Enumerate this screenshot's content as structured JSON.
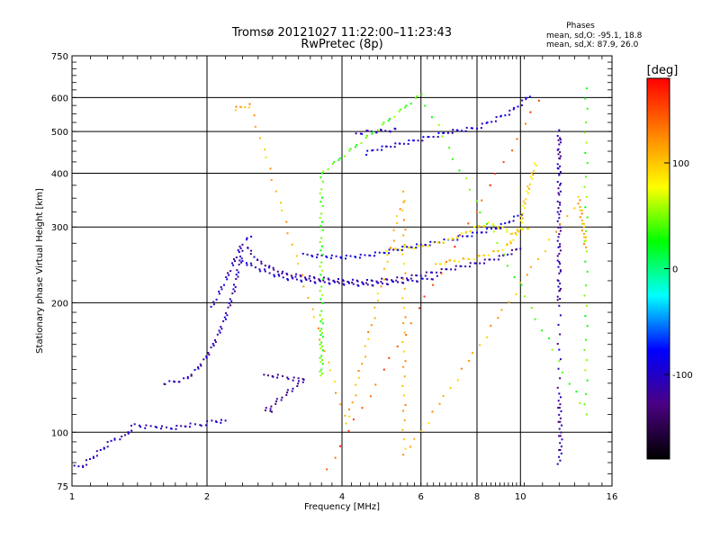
{
  "chart_data": {
    "type": "scatter",
    "title": "Tromsø 20121027 11:22:00–11:23:43",
    "subtitle": "RwPretec (8p)",
    "xlabel": "Frequency [MHz]",
    "ylabel": "Stationary phase Virtual Height [km]",
    "x_scale": "log",
    "y_scale": "log",
    "xlim": [
      1,
      16
    ],
    "ylim": [
      75,
      750
    ],
    "x_ticks": [
      1,
      2,
      4,
      6,
      8,
      10,
      16
    ],
    "x_tick_labels": [
      "1",
      "2",
      "4",
      "6",
      "8",
      "10",
      "16"
    ],
    "y_ticks": [
      75,
      100,
      200,
      300,
      400,
      500,
      600,
      750
    ],
    "y_tick_labels": [
      "75",
      "100",
      "200",
      "300",
      "400",
      "500",
      "600",
      "750"
    ],
    "grid": true,
    "stats": {
      "heading": "Phases",
      "line_o": "mean, sd,O: -95.1, 18.8",
      "line_x": "mean, sd,X:  87.9, 26.0"
    },
    "colorbar": {
      "label": "[deg]",
      "range": [
        -180,
        180
      ],
      "ticks": [
        100,
        0,
        -100
      ],
      "tick_labels": [
        "100",
        "0",
        "-100"
      ],
      "colors": [
        "#000000",
        "#4b0082",
        "#0000ff",
        "#00ffff",
        "#00ff00",
        "#ffff00",
        "#ff8000",
        "#ff0000"
      ]
    },
    "traces": [
      {
        "name": "",
        "phase": -105,
        "points": [
          [
            1.02,
            83
          ],
          [
            1.05,
            83
          ],
          [
            1.25,
            97
          ],
          [
            1.3,
            97
          ],
          [
            1.38,
            104
          ],
          [
            1.45,
            103
          ],
          [
            1.55,
            103
          ],
          [
            1.65,
            102
          ],
          [
            1.75,
            103
          ],
          [
            1.85,
            104
          ],
          [
            1.95,
            104
          ],
          [
            2.05,
            106
          ],
          [
            2.2,
            106
          ]
        ]
      },
      {
        "name": "",
        "phase": -110,
        "points": [
          [
            1.6,
            130
          ],
          [
            1.7,
            131
          ],
          [
            1.8,
            133
          ],
          [
            1.9,
            140
          ],
          [
            2.0,
            150
          ],
          [
            2.1,
            165
          ],
          [
            2.2,
            185
          ],
          [
            2.3,
            215
          ],
          [
            2.35,
            240
          ],
          [
            2.4,
            262
          ]
        ]
      },
      {
        "name": "",
        "phase": -105,
        "points": [
          [
            2.05,
            195
          ],
          [
            2.1,
            205
          ],
          [
            2.15,
            215
          ],
          [
            2.2,
            225
          ],
          [
            2.3,
            250
          ],
          [
            2.4,
            275
          ],
          [
            2.5,
            285
          ]
        ]
      },
      {
        "name": "",
        "phase": -115,
        "points": [
          [
            2.45,
            270
          ],
          [
            2.6,
            250
          ],
          [
            2.8,
            240
          ],
          [
            3.0,
            233
          ],
          [
            3.5,
            228
          ],
          [
            4.0,
            225
          ],
          [
            4.5,
            224
          ],
          [
            5.0,
            226
          ],
          [
            5.5,
            228
          ],
          [
            6.0,
            232
          ],
          [
            6.5,
            236
          ],
          [
            7.0,
            240
          ],
          [
            8.0,
            247
          ],
          [
            9.0,
            255
          ],
          [
            10.0,
            268
          ]
        ]
      },
      {
        "name": "",
        "phase": -100,
        "points": [
          [
            2.4,
            250
          ],
          [
            2.6,
            240
          ],
          [
            2.8,
            233
          ],
          [
            3.0,
            228
          ],
          [
            3.5,
            224
          ],
          [
            4.0,
            222
          ],
          [
            4.5,
            220
          ],
          [
            5.0,
            222
          ],
          [
            5.5,
            224
          ],
          [
            6.0,
            226
          ],
          [
            6.5,
            229
          ]
        ]
      },
      {
        "name": "",
        "phase": -90,
        "points": [
          [
            3.3,
            258
          ],
          [
            4.0,
            255
          ],
          [
            4.5,
            257
          ],
          [
            5.0,
            262
          ],
          [
            5.5,
            268
          ],
          [
            6.0,
            272
          ],
          [
            7.0,
            280
          ],
          [
            8.0,
            290
          ],
          [
            9.0,
            300
          ],
          [
            10.0,
            320
          ]
        ]
      },
      {
        "name": "",
        "phase": 85,
        "points": [
          [
            5.0,
            265
          ],
          [
            6.0,
            270
          ],
          [
            6.5,
            275
          ],
          [
            7.0,
            280
          ],
          [
            7.5,
            290
          ],
          [
            8.0,
            300
          ],
          [
            8.5,
            305
          ],
          [
            9.0,
            300
          ],
          [
            9.5,
            290
          ],
          [
            10.0,
            295
          ],
          [
            10.5,
            300
          ]
        ]
      },
      {
        "name": "",
        "phase": 95,
        "points": [
          [
            6.5,
            245
          ],
          [
            7.0,
            250
          ],
          [
            7.5,
            252
          ],
          [
            8.0,
            255
          ],
          [
            8.5,
            260
          ],
          [
            9.0,
            265
          ],
          [
            9.5,
            275
          ],
          [
            10.0,
            300
          ],
          [
            10.2,
            340
          ],
          [
            10.5,
            380
          ],
          [
            10.8,
            420
          ]
        ]
      },
      {
        "name": "",
        "phase": -95,
        "points": [
          [
            4.5,
            445
          ],
          [
            4.8,
            455
          ],
          [
            5.0,
            460
          ],
          [
            5.5,
            470
          ],
          [
            6.0,
            480
          ],
          [
            6.5,
            490
          ],
          [
            7.0,
            500
          ],
          [
            7.5,
            505
          ],
          [
            8.0,
            510
          ],
          [
            8.5,
            525
          ],
          [
            9.0,
            540
          ],
          [
            9.5,
            555
          ],
          [
            10.0,
            580
          ],
          [
            10.5,
            605
          ]
        ]
      },
      {
        "name": "",
        "phase": -110,
        "points": [
          [
            4.3,
            495
          ],
          [
            4.6,
            500
          ],
          [
            5.0,
            502
          ],
          [
            5.3,
            505
          ]
        ]
      },
      {
        "name": "",
        "phase": -120,
        "points": [
          [
            2.7,
            135
          ],
          [
            2.9,
            135
          ],
          [
            3.1,
            133
          ],
          [
            3.3,
            133
          ],
          [
            2.7,
            112
          ],
          [
            2.8,
            112
          ]
        ]
      },
      {
        "name": "",
        "phase": -115,
        "points": [
          [
            12.2,
            205
          ],
          [
            12.2,
            218
          ],
          [
            12.2,
            410
          ],
          [
            12.2,
            430
          ],
          [
            12.2,
            470
          ],
          [
            12.2,
            500
          ],
          [
            12.2,
            122
          ],
          [
            12.3,
            93
          ],
          [
            12.2,
            85
          ]
        ]
      },
      {
        "name": "",
        "phase": 40,
        "points": [
          [
            3.6,
            135
          ],
          [
            3.6,
            183
          ],
          [
            3.6,
            400
          ],
          [
            6.0,
            610
          ],
          [
            14.0,
            110
          ],
          [
            14.0,
            630
          ]
        ]
      },
      {
        "name": "",
        "phase": 110,
        "points": [
          [
            2.3,
            565
          ],
          [
            2.5,
            575
          ],
          [
            4.1,
            104
          ],
          [
            5.5,
            360
          ],
          [
            5.5,
            88
          ],
          [
            13.5,
            350
          ],
          [
            14.0,
            270
          ]
        ]
      },
      {
        "name": "",
        "phase": 150,
        "points": [
          [
            3.7,
            82
          ],
          [
            11.0,
            590
          ]
        ]
      }
    ]
  }
}
